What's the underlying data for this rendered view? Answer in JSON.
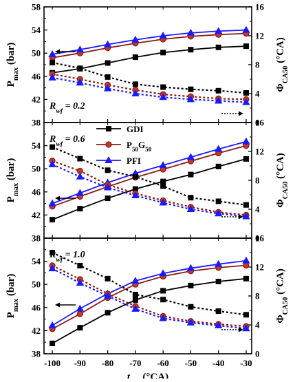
{
  "chart_data": {
    "type": "line",
    "layout": "three vertically stacked panels sharing x axis, dual y axes",
    "xlabel": "t_WI (°CA)",
    "xlabel_main": "t",
    "xlabel_sub": "WI",
    "xlabel_unit": " (°CA)",
    "x": [
      -100,
      -90,
      -80,
      -70,
      -60,
      -50,
      -40,
      -30
    ],
    "xlim": [
      -103,
      -28
    ],
    "xticks": [
      "-100",
      "-90",
      "-80",
      "-70",
      "-60",
      "-50",
      "-40",
      "-30"
    ],
    "ylabel_left": "P_max (bar)",
    "ylabel_left_main": "P",
    "ylabel_left_sub": "max",
    "ylabel_left_unit": " (bar)",
    "ylabel_right": "Φ_CA50 (°CA)",
    "ylabel_right_main": "Φ",
    "ylabel_right_sub": "CA50",
    "ylabel_right_unit": " (°CA)",
    "ylim_left": [
      38,
      58
    ],
    "yticks_left": [
      "38",
      "42",
      "46",
      "50",
      "54",
      "58"
    ],
    "ylim_right": [
      0,
      16
    ],
    "yticks_right": [
      "0",
      "4",
      "8",
      "12",
      "16"
    ],
    "legend": {
      "placement": "middle panel, upper-left-center",
      "entries": [
        {
          "label_main": "GDI",
          "label_parts": [
            "GDI"
          ],
          "color": "#000000",
          "marker": "square"
        },
        {
          "label_main": "P50G50",
          "label_parts": [
            "P",
            "50",
            "G",
            "50"
          ],
          "color": "#c0392b",
          "marker": "circle"
        },
        {
          "label_main": "PFI",
          "label_parts": [
            "PFI"
          ],
          "color": "#1a1aff",
          "marker": "triangle"
        }
      ]
    },
    "panels": [
      {
        "annotation": "R_wf = 0.2",
        "annotation_main": "R",
        "annotation_sub": "wf",
        "annotation_val": " = 0.2",
        "series": [
          {
            "name": "GDI",
            "axis": "left",
            "style": "solid",
            "color": "#000000",
            "marker": "square",
            "values": [
              46.6,
              47.3,
              48.3,
              49.3,
              50.1,
              50.6,
              51.0,
              51.2
            ]
          },
          {
            "name": "P50G50",
            "axis": "left",
            "style": "solid",
            "color": "#c0392b",
            "marker": "circle",
            "values": [
              49.2,
              50.0,
              50.9,
              51.7,
              52.4,
              52.9,
              53.2,
              53.4
            ]
          },
          {
            "name": "PFI",
            "axis": "left",
            "style": "solid",
            "color": "#1a1aff",
            "marker": "triangle",
            "values": [
              49.8,
              50.6,
              51.5,
              52.3,
              53.0,
              53.5,
              53.8,
              54.0
            ]
          },
          {
            "name": "GDI",
            "axis": "right",
            "style": "dotted",
            "color": "#000000",
            "marker": "square",
            "values": [
              8.3,
              7.5,
              6.3,
              5.3,
              4.9,
              4.6,
              4.4,
              4.1
            ]
          },
          {
            "name": "P50G50",
            "axis": "right",
            "style": "dotted",
            "color": "#c0392b",
            "marker": "circle",
            "values": [
              6.7,
              6.0,
              5.2,
              4.5,
              3.9,
              3.6,
              3.3,
              3.2
            ]
          },
          {
            "name": "PFI",
            "axis": "right",
            "style": "dotted",
            "color": "#1a1aff",
            "marker": "triangle",
            "values": [
              6.2,
              5.5,
              4.7,
              4.0,
              3.5,
              3.2,
              3.0,
              2.8
            ]
          }
        ]
      },
      {
        "annotation": "R_wf = 0.6",
        "annotation_main": "R",
        "annotation_sub": "wf",
        "annotation_val": " = 0.6",
        "series": [
          {
            "name": "GDI",
            "axis": "left",
            "style": "solid",
            "color": "#000000",
            "marker": "square",
            "values": [
              41.2,
              43.1,
              44.9,
              46.5,
              47.8,
              49.0,
              50.4,
              51.7
            ]
          },
          {
            "name": "P50G50",
            "axis": "left",
            "style": "solid",
            "color": "#c0392b",
            "marker": "circle",
            "values": [
              43.5,
              45.2,
              46.9,
              48.5,
              49.9,
              51.3,
              52.7,
              54.0
            ]
          },
          {
            "name": "PFI",
            "axis": "left",
            "style": "solid",
            "color": "#1a1aff",
            "marker": "triangle",
            "values": [
              44.0,
              45.8,
              47.6,
              49.2,
              50.6,
              52.0,
              53.4,
              54.7
            ]
          },
          {
            "name": "GDI",
            "axis": "right",
            "style": "dotted",
            "color": "#000000",
            "marker": "square",
            "values": [
              12.6,
              11.0,
              9.4,
              8.5,
              7.2,
              5.6,
              5.1,
              4.6
            ]
          },
          {
            "name": "P50G50",
            "axis": "right",
            "style": "dotted",
            "color": "#c0392b",
            "marker": "circle",
            "values": [
              10.7,
              9.3,
              7.4,
              6.2,
              5.2,
              4.3,
              3.6,
              3.2
            ]
          },
          {
            "name": "PFI",
            "axis": "right",
            "style": "dotted",
            "color": "#1a1aff",
            "marker": "triangle",
            "values": [
              10.2,
              8.5,
              7.0,
              5.9,
              4.9,
              4.0,
              3.4,
              3.0
            ]
          }
        ]
      },
      {
        "annotation": "R_wf = 1.0",
        "annotation_main": "R",
        "annotation_sub": "wf",
        "annotation_val": " = 1.0",
        "series": [
          {
            "name": "GDI",
            "axis": "left",
            "style": "solid",
            "color": "#000000",
            "marker": "square",
            "values": [
              39.8,
              42.5,
              45.1,
              47.3,
              48.9,
              49.8,
              50.5,
              51.0
            ]
          },
          {
            "name": "P50G50",
            "axis": "left",
            "style": "solid",
            "color": "#c0392b",
            "marker": "circle",
            "values": [
              42.3,
              44.9,
              47.7,
              50.0,
              51.4,
              52.3,
              52.9,
              53.3
            ]
          },
          {
            "name": "PFI",
            "axis": "left",
            "style": "solid",
            "color": "#1a1aff",
            "marker": "triangle",
            "values": [
              42.9,
              45.8,
              48.4,
              50.6,
              51.9,
              52.8,
              53.5,
              54.1
            ]
          },
          {
            "name": "GDI",
            "axis": "right",
            "style": "dotted",
            "color": "#000000",
            "marker": "square",
            "values": [
              14.0,
              12.2,
              10.4,
              8.2,
              7.5,
              6.5,
              5.9,
              5.4
            ]
          },
          {
            "name": "P50G50",
            "axis": "right",
            "style": "dotted",
            "color": "#c0392b",
            "marker": "circle",
            "values": [
              12.2,
              10.3,
              8.3,
              6.6,
              5.2,
              4.5,
              4.1,
              3.8
            ]
          },
          {
            "name": "PFI",
            "axis": "right",
            "style": "dotted",
            "color": "#1a1aff",
            "marker": "triangle",
            "values": [
              11.8,
              9.8,
              8.0,
              6.2,
              4.9,
              4.3,
              3.9,
              3.5
            ]
          }
        ]
      }
    ]
  }
}
